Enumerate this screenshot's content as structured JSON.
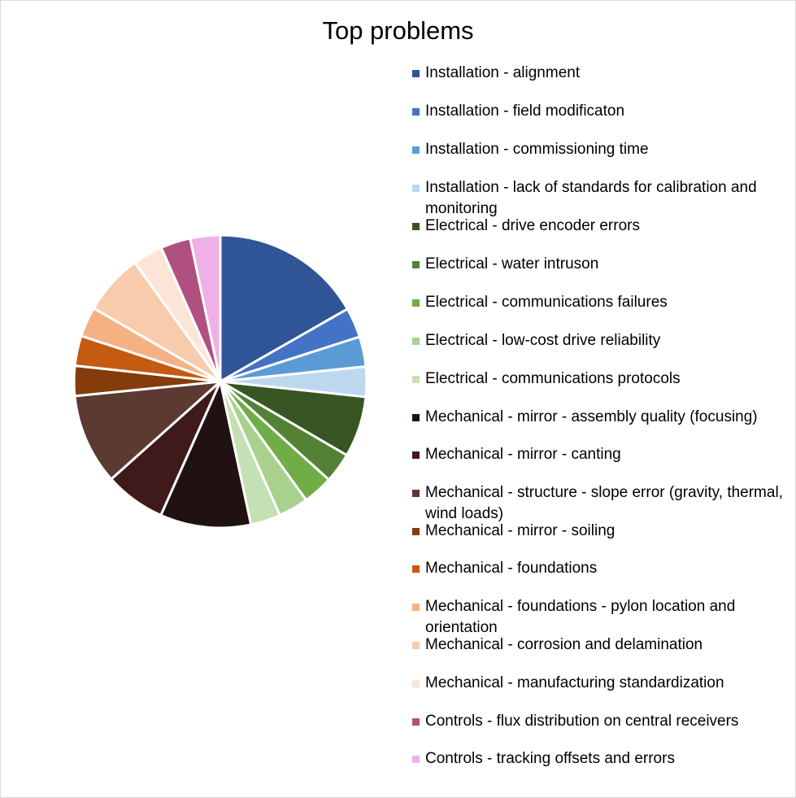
{
  "chart_data": {
    "type": "pie",
    "title": "Top problems",
    "legend_position": "right",
    "slices": [
      {
        "label": "Installation - alignment",
        "value": 17.2,
        "color": "#2f5597"
      },
      {
        "label": "Installation - field modificaton",
        "value": 3.4,
        "color": "#4472c4"
      },
      {
        "label": "Installation - commissioning time",
        "value": 3.4,
        "color": "#5b9bd5"
      },
      {
        "label": "Installation - lack of standards for calibration and monitoring",
        "value": 3.4,
        "color": "#bdd7ee"
      },
      {
        "label": "Electrical - drive encoder errors",
        "value": 6.9,
        "color": "#375623"
      },
      {
        "label": "Electrical - water intruson",
        "value": 3.4,
        "color": "#548235"
      },
      {
        "label": "Electrical - communications failures",
        "value": 3.4,
        "color": "#70ad47"
      },
      {
        "label": "Electrical - low-cost drive reliability",
        "value": 3.4,
        "color": "#a9d18e"
      },
      {
        "label": "Electrical - communications protocols",
        "value": 3.4,
        "color": "#c5e0b4"
      },
      {
        "label": "Mechanical - mirror - assembly quality (focusing)",
        "value": 10.3,
        "color": "#201212"
      },
      {
        "label": "Mechanical - mirror - canting",
        "value": 6.9,
        "color": "#3f1a1a"
      },
      {
        "label": "Mechanical - structure - slope error (gravity, thermal, wind loads)",
        "value": 10.3,
        "color": "#5b3a32"
      },
      {
        "label": "Mechanical - mirror - soiling",
        "value": 3.4,
        "color": "#843c0c"
      },
      {
        "label": "Mechanical - foundations",
        "value": 3.4,
        "color": "#c55a11"
      },
      {
        "label": "Mechanical - foundations - pylon location and orientation",
        "value": 3.4,
        "color": "#f4b183"
      },
      {
        "label": "Mechanical - corrosion and delamination",
        "value": 6.9,
        "color": "#f8cbad"
      },
      {
        "label": "Mechanical - manufacturing standardization",
        "value": 3.4,
        "color": "#fbe5d6"
      },
      {
        "label": "Controls - flux distribution on central receivers",
        "value": 3.4,
        "color": "#b05080"
      },
      {
        "label": "Controls - tracking offsets and errors",
        "value": 3.4,
        "color": "#efb0e8"
      }
    ]
  }
}
